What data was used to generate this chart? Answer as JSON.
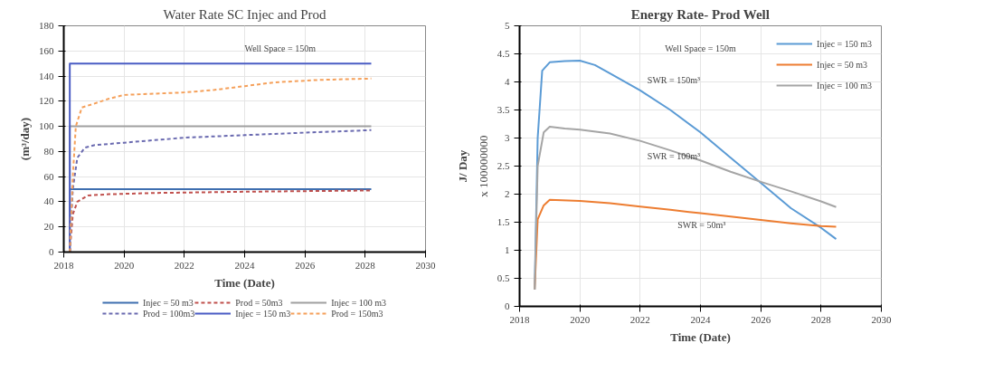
{
  "chart_data": [
    {
      "type": "line",
      "title": "Water Rate SC Injec and Prod",
      "xlabel": "Time (Date)",
      "ylabel": "(m³/day)",
      "xlim": [
        2018,
        2030
      ],
      "xticks": [
        2018,
        2020,
        2022,
        2024,
        2026,
        2028,
        2030
      ],
      "ylim": [
        0,
        180
      ],
      "yticks": [
        0,
        20,
        40,
        60,
        80,
        100,
        120,
        140,
        160,
        180
      ],
      "grid": true,
      "legend": "bottom",
      "annotations": [
        "Well Space = 150m"
      ],
      "series": [
        {
          "name": "Injec = 50 m3",
          "color": "#3f6fb0",
          "line_style": "solid",
          "x": [
            2018.2,
            2018.2,
            2028.2
          ],
          "values": [
            0,
            50,
            50
          ]
        },
        {
          "name": "Prod = 50m3",
          "color": "#c0504d",
          "line_style": "dashed",
          "x": [
            2018.2,
            2018.3,
            2018.45,
            2018.8,
            2019.5,
            2021,
            2024,
            2028.2
          ],
          "values": [
            0,
            30,
            40,
            45,
            46,
            47,
            48,
            49
          ]
        },
        {
          "name": "Injec = 100 m3",
          "color": "#a0a0a0",
          "line_style": "solid",
          "x": [
            2018.2,
            2018.2,
            2028.2
          ],
          "values": [
            0,
            100,
            100
          ]
        },
        {
          "name": "Prod = 100m3",
          "color": "#6a6ab0",
          "line_style": "dashed",
          "x": [
            2018.2,
            2018.3,
            2018.45,
            2018.7,
            2019,
            2020,
            2021,
            2022,
            2024,
            2026,
            2028.2
          ],
          "values": [
            0,
            50,
            75,
            83,
            85,
            87,
            89,
            91,
            93,
            95,
            97
          ]
        },
        {
          "name": "Injec = 150 m3",
          "color": "#4a5cc4",
          "line_style": "solid",
          "x": [
            2018.2,
            2018.2,
            2028.2
          ],
          "values": [
            0,
            150,
            150
          ]
        },
        {
          "name": "Prod = 150m3",
          "color": "#f5a05a",
          "line_style": "dashed",
          "x": [
            2018.2,
            2018.3,
            2018.4,
            2018.6,
            2019,
            2019.5,
            2020,
            2022,
            2023,
            2024,
            2025,
            2026.5,
            2028.2
          ],
          "values": [
            0,
            60,
            100,
            115,
            118,
            122,
            125,
            127,
            129,
            132,
            135,
            137,
            138
          ]
        }
      ]
    },
    {
      "type": "line",
      "title": "Energy Rate- Prod Well",
      "xlabel": "Time (Date)",
      "ylabel": "J/ Day",
      "xlim": [
        2018,
        2030
      ],
      "xticks": [
        2018,
        2020,
        2022,
        2024,
        2026,
        2028,
        2030
      ],
      "ylim": [
        0,
        5
      ],
      "yticks": [
        0,
        0.5,
        1,
        1.5,
        2,
        2.5,
        3,
        3.5,
        4,
        4.5,
        5
      ],
      "grid": true,
      "legend": "top right",
      "annotations": [
        "Well Space = 150m",
        "x 100000000",
        "SWR = 150m³",
        "SWR = 50m³",
        "SWR = 100m³"
      ],
      "series": [
        {
          "name": "Injec = 150 m3",
          "color": "#5b9bd5",
          "x": [
            2018.5,
            2018.6,
            2018.75,
            2019,
            2019.5,
            2020,
            2020.5,
            2021,
            2022,
            2023,
            2024,
            2025,
            2026,
            2027,
            2028,
            2028.5
          ],
          "values": [
            0.3,
            3.0,
            4.2,
            4.35,
            4.37,
            4.38,
            4.3,
            4.15,
            3.85,
            3.5,
            3.1,
            2.65,
            2.2,
            1.75,
            1.4,
            1.2
          ]
        },
        {
          "name": "Injec = 50 m3",
          "color": "#ed7d31",
          "x": [
            2018.5,
            2018.6,
            2018.8,
            2019,
            2020,
            2021,
            2022,
            2023,
            2024,
            2025,
            2026,
            2027,
            2028,
            2028.5
          ],
          "values": [
            0.3,
            1.55,
            1.8,
            1.9,
            1.88,
            1.84,
            1.78,
            1.72,
            1.66,
            1.6,
            1.54,
            1.48,
            1.43,
            1.42
          ]
        },
        {
          "name": "Injec = 100 m3",
          "color": "#a5a5a5",
          "x": [
            2018.5,
            2018.6,
            2018.8,
            2019,
            2019.5,
            2020,
            2021,
            2022,
            2023,
            2024,
            2025,
            2026,
            2027,
            2028,
            2028.5
          ],
          "values": [
            0.3,
            2.5,
            3.1,
            3.2,
            3.17,
            3.15,
            3.08,
            2.95,
            2.78,
            2.6,
            2.4,
            2.22,
            2.05,
            1.87,
            1.77
          ]
        }
      ]
    }
  ]
}
